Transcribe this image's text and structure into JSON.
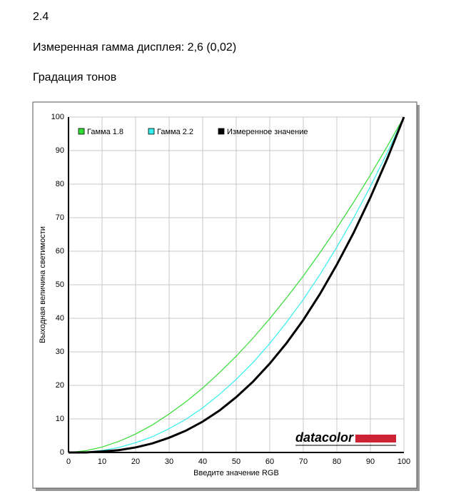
{
  "heading": "2.4",
  "measured_gamma": "Измеренная гамма дисплея: 2,6 (0,02)",
  "section": "Градация тонов",
  "logo": "datacolor",
  "chart_data": {
    "type": "line",
    "xlabel": "Введите значение RGB",
    "ylabel": "Выходная величина светимости",
    "x": [
      0,
      5,
      10,
      15,
      20,
      25,
      30,
      35,
      40,
      45,
      50,
      55,
      60,
      65,
      70,
      75,
      80,
      85,
      90,
      95,
      100
    ],
    "series": [
      {
        "name": "Гамма 1.8",
        "color": "#33dd33",
        "values": [
          0,
          0.5,
          1.6,
          3.3,
          5.5,
          8.2,
          11.5,
          15.1,
          19.2,
          23.8,
          28.7,
          34.1,
          39.9,
          46.1,
          52.6,
          59.6,
          66.9,
          74.6,
          82.7,
          91.2,
          100
        ]
      },
      {
        "name": "Гамма 2.2",
        "color": "#33eeee",
        "values": [
          0,
          0.1,
          0.6,
          1.5,
          2.9,
          4.7,
          7.1,
          9.9,
          13.3,
          17.3,
          21.8,
          26.8,
          32.5,
          38.8,
          45.6,
          53.1,
          61.2,
          69.9,
          79.3,
          89.3,
          100
        ]
      },
      {
        "name": "Измеренное значение",
        "color": "#000000",
        "values": [
          0,
          0,
          0.3,
          0.7,
          1.5,
          2.7,
          4.4,
          6.5,
          9.2,
          12.5,
          16.5,
          21.1,
          26.5,
          32.6,
          39.5,
          47.3,
          56.0,
          65.5,
          76.0,
          87.5,
          100
        ]
      }
    ],
    "xlim": [
      0,
      100
    ],
    "ylim": [
      0,
      100
    ],
    "xticks": [
      0,
      10,
      20,
      30,
      40,
      50,
      60,
      70,
      80,
      90,
      100
    ],
    "yticks": [
      0,
      10,
      20,
      30,
      40,
      50,
      60,
      70,
      80,
      90,
      100
    ],
    "grid": true,
    "legend": "top-left"
  }
}
